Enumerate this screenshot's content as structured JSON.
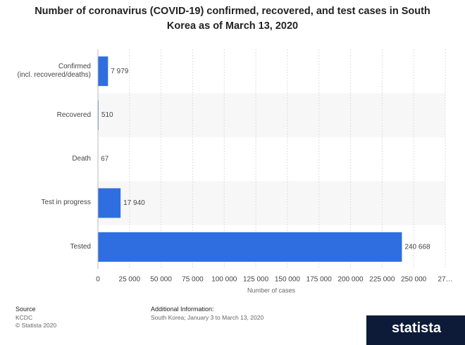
{
  "chart_data": {
    "type": "bar",
    "orientation": "horizontal",
    "title": "Number of coronavirus (COVID-19) confirmed, recovered, and test cases in South Korea as of March 13, 2020",
    "x_label": "Number of cases",
    "categories": [
      "Confirmed\n(incl. recovered/deaths)",
      "Recovered",
      "Death",
      "Test in progress",
      "Tested"
    ],
    "values": [
      7979,
      510,
      67,
      17940,
      240668
    ],
    "value_labels": [
      "7 979",
      "510",
      "67",
      "17 940",
      "240 668"
    ],
    "color": "#2f6ee0",
    "xlim": [
      0,
      275000
    ],
    "xticks": [
      0,
      {
        "value": 25000,
        "label": "25 000"
      },
      {
        "value": 50000,
        "label": "50 000"
      },
      {
        "value": 75000,
        "label": "75 000"
      },
      {
        "value": 100000,
        "label": "100 000"
      },
      {
        "value": 125000,
        "label": "125 000"
      },
      {
        "value": 150000,
        "label": "150 000"
      },
      {
        "value": 175000,
        "label": "175 000"
      },
      {
        "value": 200000,
        "label": "200 000"
      },
      {
        "value": 225000,
        "label": "225 000"
      },
      {
        "value": 250000,
        "label": "250 000"
      },
      {
        "value": 275000,
        "label": "27…"
      }
    ],
    "grid": true
  },
  "footer": {
    "source_title": "Source",
    "source": "KCDC",
    "copyright": "© Statista 2020",
    "info_title": "Additional Information:",
    "info": "South Korea; January 3 to March 13, 2020",
    "logo": "statista"
  }
}
